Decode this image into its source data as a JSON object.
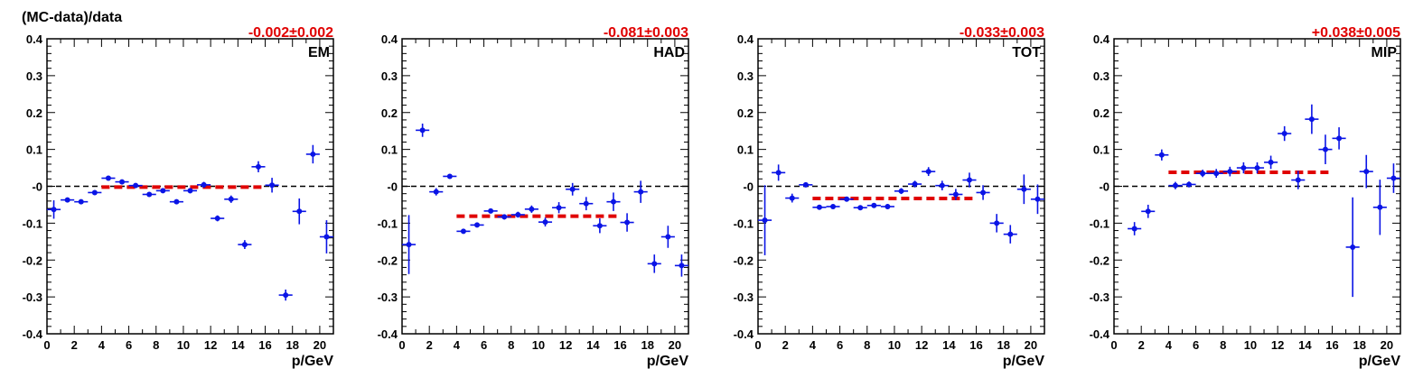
{
  "ylabel": "(MC-data)/data",
  "colors": {
    "points": "#0a14e6",
    "fit": "#e00000",
    "zero": "#000000",
    "axis": "#000000"
  },
  "chart_data": [
    {
      "type": "scatter",
      "panel": "EM",
      "fit_text": "-0.002±0.002",
      "xlabel": "p/GeV",
      "xlim": [
        0,
        21
      ],
      "ylim": [
        -0.4,
        0.4
      ],
      "xticks": [
        0,
        2,
        4,
        6,
        8,
        10,
        12,
        14,
        16,
        18,
        20
      ],
      "yticks": [
        "0.4",
        "0.3",
        "0.2",
        "0.1",
        "-0",
        "-0.1",
        "-0.2",
        "-0.3",
        "-0.4"
      ],
      "fit": {
        "value": -0.002,
        "x_range": [
          4,
          16
        ]
      },
      "points": [
        {
          "x": 0.5,
          "y": -0.063,
          "err": 0.025
        },
        {
          "x": 1.5,
          "y": -0.037,
          "err": 0.004
        },
        {
          "x": 2.5,
          "y": -0.042,
          "err": 0.004
        },
        {
          "x": 3.5,
          "y": -0.017,
          "err": 0.004
        },
        {
          "x": 4.5,
          "y": 0.022,
          "err": 0.004
        },
        {
          "x": 5.5,
          "y": 0.012,
          "err": 0.004
        },
        {
          "x": 6.5,
          "y": 0.002,
          "err": 0.004
        },
        {
          "x": 7.5,
          "y": -0.022,
          "err": 0.005
        },
        {
          "x": 8.5,
          "y": -0.012,
          "err": 0.005
        },
        {
          "x": 9.5,
          "y": -0.042,
          "err": 0.006
        },
        {
          "x": 10.5,
          "y": -0.012,
          "err": 0.007
        },
        {
          "x": 11.5,
          "y": 0.004,
          "err": 0.008
        },
        {
          "x": 12.5,
          "y": -0.087,
          "err": 0.008
        },
        {
          "x": 13.5,
          "y": -0.035,
          "err": 0.01
        },
        {
          "x": 14.5,
          "y": -0.158,
          "err": 0.012
        },
        {
          "x": 15.5,
          "y": 0.053,
          "err": 0.015
        },
        {
          "x": 16.5,
          "y": 0.003,
          "err": 0.02
        },
        {
          "x": 17.5,
          "y": -0.295,
          "err": 0.015
        },
        {
          "x": 18.5,
          "y": -0.068,
          "err": 0.035
        },
        {
          "x": 19.5,
          "y": 0.087,
          "err": 0.025
        },
        {
          "x": 20.5,
          "y": -0.137,
          "err": 0.045
        }
      ]
    },
    {
      "type": "scatter",
      "panel": "HAD",
      "fit_text": "-0.081±0.003",
      "xlabel": "p/GeV",
      "xlim": [
        0,
        21
      ],
      "ylim": [
        -0.4,
        0.4
      ],
      "xticks": [
        0,
        2,
        4,
        6,
        8,
        10,
        12,
        14,
        16,
        18,
        20
      ],
      "yticks": [
        "0.4",
        "0.3",
        "0.2",
        "0.1",
        "-0",
        "-0.1",
        "-0.2",
        "-0.3",
        "-0.4"
      ],
      "fit": {
        "value": -0.081,
        "x_range": [
          4,
          16
        ]
      },
      "points": [
        {
          "x": 0.5,
          "y": -0.158,
          "err": 0.08
        },
        {
          "x": 1.5,
          "y": 0.152,
          "err": 0.018
        },
        {
          "x": 2.5,
          "y": -0.015,
          "err": 0.01
        },
        {
          "x": 3.5,
          "y": 0.027,
          "err": 0.004
        },
        {
          "x": 4.5,
          "y": -0.122,
          "err": 0.005
        },
        {
          "x": 5.5,
          "y": -0.105,
          "err": 0.005
        },
        {
          "x": 6.5,
          "y": -0.067,
          "err": 0.006
        },
        {
          "x": 7.5,
          "y": -0.083,
          "err": 0.007
        },
        {
          "x": 8.5,
          "y": -0.077,
          "err": 0.008
        },
        {
          "x": 9.5,
          "y": -0.062,
          "err": 0.01
        },
        {
          "x": 10.5,
          "y": -0.097,
          "err": 0.012
        },
        {
          "x": 11.5,
          "y": -0.058,
          "err": 0.015
        },
        {
          "x": 12.5,
          "y": -0.008,
          "err": 0.017
        },
        {
          "x": 13.5,
          "y": -0.047,
          "err": 0.018
        },
        {
          "x": 14.5,
          "y": -0.107,
          "err": 0.02
        },
        {
          "x": 15.5,
          "y": -0.042,
          "err": 0.025
        },
        {
          "x": 16.5,
          "y": -0.098,
          "err": 0.025
        },
        {
          "x": 17.5,
          "y": -0.015,
          "err": 0.03
        },
        {
          "x": 18.5,
          "y": -0.21,
          "err": 0.025
        },
        {
          "x": 19.5,
          "y": -0.137,
          "err": 0.03
        },
        {
          "x": 20.5,
          "y": -0.215,
          "err": 0.03
        }
      ]
    },
    {
      "type": "scatter",
      "panel": "TOT",
      "fit_text": "-0.033±0.003",
      "xlabel": "p/GeV",
      "xlim": [
        0,
        21
      ],
      "ylim": [
        -0.4,
        0.4
      ],
      "xticks": [
        0,
        2,
        4,
        6,
        8,
        10,
        12,
        14,
        16,
        18,
        20
      ],
      "yticks": [
        "0.4",
        "0.3",
        "0.2",
        "0.1",
        "-0",
        "-0.1",
        "-0.2",
        "-0.3",
        "-0.4"
      ],
      "fit": {
        "value": -0.033,
        "x_range": [
          4,
          16
        ]
      },
      "points": [
        {
          "x": 0.5,
          "y": -0.092,
          "err": 0.095
        },
        {
          "x": 1.5,
          "y": 0.037,
          "err": 0.022
        },
        {
          "x": 2.5,
          "y": -0.032,
          "err": 0.012
        },
        {
          "x": 3.5,
          "y": 0.004,
          "err": 0.004
        },
        {
          "x": 4.5,
          "y": -0.057,
          "err": 0.004
        },
        {
          "x": 5.5,
          "y": -0.055,
          "err": 0.004
        },
        {
          "x": 6.5,
          "y": -0.035,
          "err": 0.004
        },
        {
          "x": 7.5,
          "y": -0.058,
          "err": 0.005
        },
        {
          "x": 8.5,
          "y": -0.052,
          "err": 0.006
        },
        {
          "x": 9.5,
          "y": -0.055,
          "err": 0.007
        },
        {
          "x": 10.5,
          "y": -0.013,
          "err": 0.008
        },
        {
          "x": 11.5,
          "y": 0.006,
          "err": 0.009
        },
        {
          "x": 12.5,
          "y": 0.04,
          "err": 0.012
        },
        {
          "x": 13.5,
          "y": 0.002,
          "err": 0.013
        },
        {
          "x": 14.5,
          "y": -0.022,
          "err": 0.015
        },
        {
          "x": 15.5,
          "y": 0.017,
          "err": 0.02
        },
        {
          "x": 16.5,
          "y": -0.017,
          "err": 0.02
        },
        {
          "x": 17.5,
          "y": -0.1,
          "err": 0.025
        },
        {
          "x": 18.5,
          "y": -0.13,
          "err": 0.025
        },
        {
          "x": 19.5,
          "y": -0.008,
          "err": 0.04
        },
        {
          "x": 20.5,
          "y": -0.035,
          "err": 0.04
        }
      ]
    },
    {
      "type": "scatter",
      "panel": "MIP",
      "fit_text": "+0.038±0.005",
      "xlabel": "p/GeV",
      "xlim": [
        0,
        21
      ],
      "ylim": [
        -0.4,
        0.4
      ],
      "xticks": [
        0,
        2,
        4,
        6,
        8,
        10,
        12,
        14,
        16,
        18,
        20
      ],
      "yticks": [
        "0.4",
        "0.3",
        "0.2",
        "0.1",
        "-0",
        "-0.1",
        "-0.2",
        "-0.3",
        "-0.4"
      ],
      "fit": {
        "value": 0.038,
        "x_range": [
          4,
          16
        ]
      },
      "points": [
        {
          "x": 1.5,
          "y": -0.115,
          "err": 0.018
        },
        {
          "x": 2.5,
          "y": -0.068,
          "err": 0.018
        },
        {
          "x": 3.5,
          "y": 0.085,
          "err": 0.015
        },
        {
          "x": 4.5,
          "y": 0.002,
          "err": 0.01
        },
        {
          "x": 5.5,
          "y": 0.005,
          "err": 0.008
        },
        {
          "x": 6.5,
          "y": 0.035,
          "err": 0.01
        },
        {
          "x": 7.5,
          "y": 0.035,
          "err": 0.012
        },
        {
          "x": 8.5,
          "y": 0.04,
          "err": 0.013
        },
        {
          "x": 9.5,
          "y": 0.05,
          "err": 0.015
        },
        {
          "x": 10.5,
          "y": 0.05,
          "err": 0.015
        },
        {
          "x": 11.5,
          "y": 0.065,
          "err": 0.018
        },
        {
          "x": 12.5,
          "y": 0.143,
          "err": 0.02
        },
        {
          "x": 13.5,
          "y": 0.017,
          "err": 0.025
        },
        {
          "x": 14.5,
          "y": 0.182,
          "err": 0.04
        },
        {
          "x": 15.5,
          "y": 0.1,
          "err": 0.04
        },
        {
          "x": 16.5,
          "y": 0.13,
          "err": 0.03
        },
        {
          "x": 17.5,
          "y": -0.165,
          "err": 0.135
        },
        {
          "x": 18.5,
          "y": 0.04,
          "err": 0.045
        },
        {
          "x": 19.5,
          "y": -0.057,
          "err": 0.075
        },
        {
          "x": 20.5,
          "y": 0.022,
          "err": 0.04
        }
      ]
    }
  ]
}
